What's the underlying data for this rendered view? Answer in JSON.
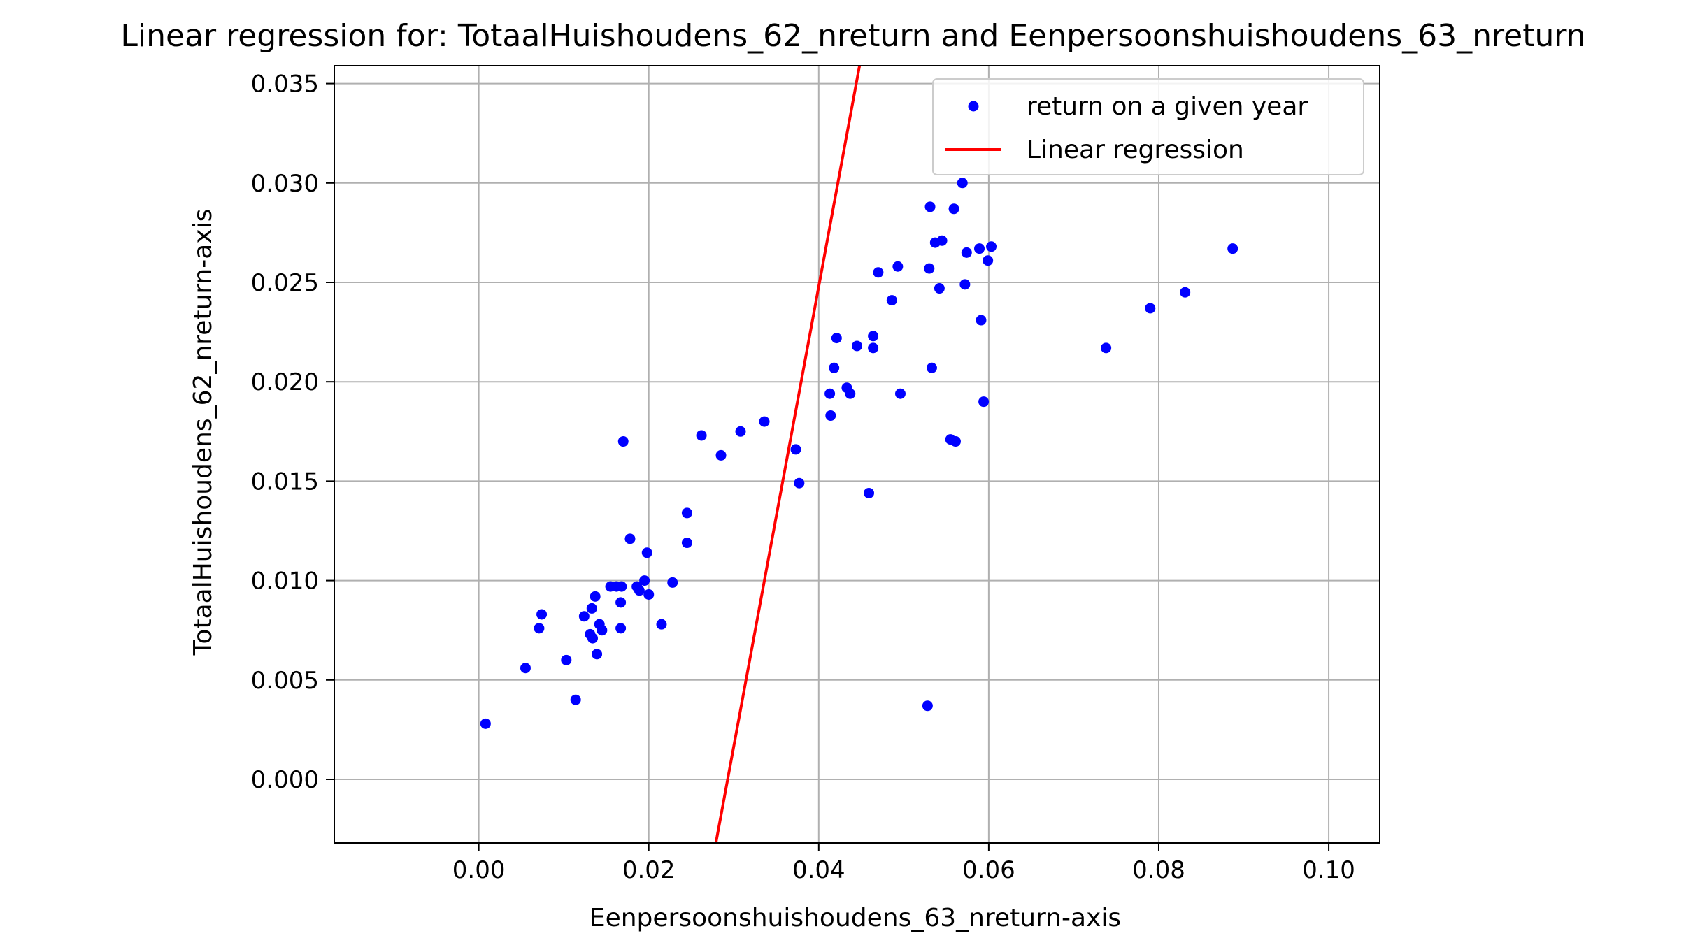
{
  "chart_data": {
    "type": "scatter",
    "title": "Linear regression for: TotaalHuishoudens_62_nreturn and Eenpersoonshuishoudens_63_nreturn",
    "xlabel": "Eenpersoonshuishoudens_63_nreturn-axis",
    "ylabel": "TotaalHuishoudens_62_nreturn-axis",
    "xlim": [
      -0.017,
      0.106
    ],
    "ylim": [
      -0.0032,
      0.0359
    ],
    "xticks": [
      "0.00",
      "0.02",
      "0.04",
      "0.06",
      "0.08",
      "0.10"
    ],
    "xtick_values": [
      0.0,
      0.02,
      0.04,
      0.06,
      0.08,
      0.1
    ],
    "yticks": [
      "0.000",
      "0.005",
      "0.010",
      "0.015",
      "0.020",
      "0.025",
      "0.030",
      "0.035"
    ],
    "ytick_values": [
      0.0,
      0.005,
      0.01,
      0.015,
      0.02,
      0.025,
      0.03,
      0.035
    ],
    "grid": true,
    "legend_position": "top-right",
    "series": [
      {
        "name": "return on a given year",
        "kind": "scatter",
        "color": "#0000ff",
        "points": [
          [
            0.0008,
            0.0028
          ],
          [
            0.0055,
            0.0056
          ],
          [
            0.0071,
            0.0076
          ],
          [
            0.0074,
            0.0083
          ],
          [
            0.0103,
            0.006
          ],
          [
            0.0114,
            0.004
          ],
          [
            0.0124,
            0.0082
          ],
          [
            0.0131,
            0.0073
          ],
          [
            0.0133,
            0.0086
          ],
          [
            0.0134,
            0.0071
          ],
          [
            0.0137,
            0.0092
          ],
          [
            0.0139,
            0.0063
          ],
          [
            0.0142,
            0.0078
          ],
          [
            0.0145,
            0.0075
          ],
          [
            0.0155,
            0.0097
          ],
          [
            0.0162,
            0.0097
          ],
          [
            0.0167,
            0.0089
          ],
          [
            0.0168,
            0.0097
          ],
          [
            0.0167,
            0.0076
          ],
          [
            0.017,
            0.017
          ],
          [
            0.0178,
            0.0121
          ],
          [
            0.0186,
            0.0097
          ],
          [
            0.0189,
            0.0095
          ],
          [
            0.0195,
            0.01
          ],
          [
            0.0198,
            0.0114
          ],
          [
            0.02,
            0.0093
          ],
          [
            0.0215,
            0.0078
          ],
          [
            0.0228,
            0.0099
          ],
          [
            0.0245,
            0.0134
          ],
          [
            0.0245,
            0.0119
          ],
          [
            0.0262,
            0.0173
          ],
          [
            0.0285,
            0.0163
          ],
          [
            0.0308,
            0.0175
          ],
          [
            0.0336,
            0.018
          ],
          [
            0.0373,
            0.0166
          ],
          [
            0.0377,
            0.0149
          ],
          [
            0.0413,
            0.0194
          ],
          [
            0.0414,
            0.0183
          ],
          [
            0.0418,
            0.0207
          ],
          [
            0.0421,
            0.0222
          ],
          [
            0.0433,
            0.0197
          ],
          [
            0.0437,
            0.0194
          ],
          [
            0.0445,
            0.0218
          ],
          [
            0.0459,
            0.0144
          ],
          [
            0.0464,
            0.0217
          ],
          [
            0.0464,
            0.0223
          ],
          [
            0.047,
            0.0255
          ],
          [
            0.0486,
            0.0241
          ],
          [
            0.0493,
            0.0258
          ],
          [
            0.0496,
            0.0194
          ],
          [
            0.0528,
            0.0037
          ],
          [
            0.053,
            0.0257
          ],
          [
            0.0531,
            0.0288
          ],
          [
            0.0533,
            0.0207
          ],
          [
            0.0537,
            0.027
          ],
          [
            0.0542,
            0.0247
          ],
          [
            0.0545,
            0.0271
          ],
          [
            0.0555,
            0.0171
          ],
          [
            0.0559,
            0.0287
          ],
          [
            0.0561,
            0.017
          ],
          [
            0.0569,
            0.03
          ],
          [
            0.0572,
            0.0249
          ],
          [
            0.0574,
            0.0265
          ],
          [
            0.0589,
            0.0267
          ],
          [
            0.0591,
            0.0231
          ],
          [
            0.0594,
            0.019
          ],
          [
            0.0599,
            0.0261
          ],
          [
            0.0603,
            0.0268
          ],
          [
            0.0738,
            0.0217
          ],
          [
            0.079,
            0.0237
          ],
          [
            0.0831,
            0.0245
          ],
          [
            0.0887,
            0.0267
          ]
        ]
      },
      {
        "name": "Linear regression",
        "kind": "line",
        "color": "#ff0000",
        "points": [
          [
            0.0279,
            -0.0032
          ],
          [
            0.0448,
            0.0359
          ]
        ]
      }
    ]
  }
}
